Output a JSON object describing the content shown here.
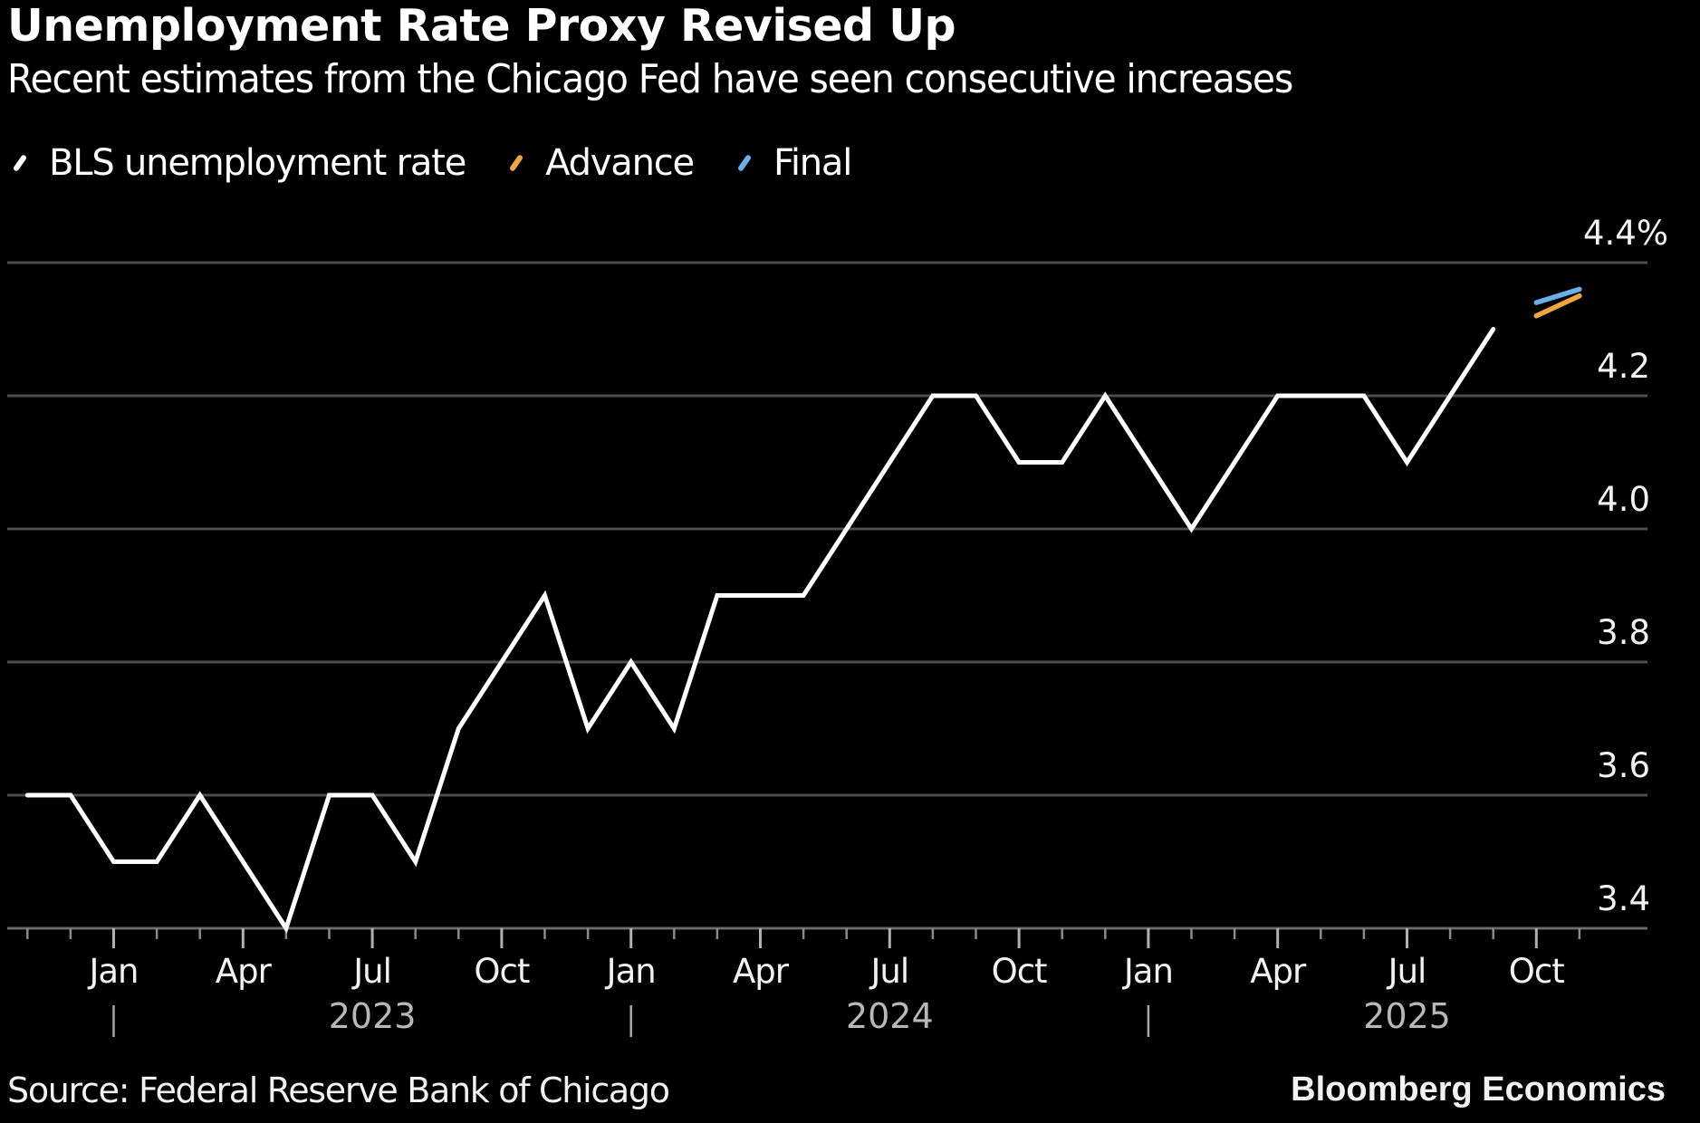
{
  "chart_data": {
    "type": "line",
    "title": "Unemployment Rate Proxy Revised Up",
    "subtitle": "Recent estimates from the Chicago Fed have seen consecutive increases",
    "xlabel": "",
    "ylabel": "",
    "ylim": [
      3.4,
      4.4
    ],
    "y_ticks": [
      3.4,
      3.6,
      3.8,
      4.0,
      4.2,
      4.4
    ],
    "y_tick_labels": [
      "3.4",
      "3.6",
      "3.8",
      "4.0",
      "4.2",
      "4.4%"
    ],
    "y_axis_side": "right",
    "grid": true,
    "legend_position": "top-left",
    "x_range": [
      "2022-11",
      "2025-12"
    ],
    "x_month_ticks": [
      {
        "month": "2023-01",
        "label": "Jan"
      },
      {
        "month": "2023-04",
        "label": "Apr"
      },
      {
        "month": "2023-07",
        "label": "Jul"
      },
      {
        "month": "2023-10",
        "label": "Oct"
      },
      {
        "month": "2024-01",
        "label": "Jan"
      },
      {
        "month": "2024-04",
        "label": "Apr"
      },
      {
        "month": "2024-07",
        "label": "Jul"
      },
      {
        "month": "2024-10",
        "label": "Oct"
      },
      {
        "month": "2025-01",
        "label": "Jan"
      },
      {
        "month": "2025-04",
        "label": "Apr"
      },
      {
        "month": "2025-07",
        "label": "Jul"
      },
      {
        "month": "2025-10",
        "label": "Oct"
      }
    ],
    "x_year_labels": [
      {
        "label": "2023",
        "center_month": "2023-07"
      },
      {
        "label": "2024",
        "center_month": "2024-07"
      },
      {
        "label": "2025",
        "center_month": "2025-07"
      }
    ],
    "x_year_separators": [
      "2023-01",
      "2024-01",
      "2025-01"
    ],
    "series": [
      {
        "name": "BLS unemployment rate",
        "color": "#ffffff",
        "points": [
          {
            "x": "2022-10",
            "y": 3.6
          },
          {
            "x": "2022-11",
            "y": 3.6
          },
          {
            "x": "2022-12",
            "y": 3.5
          },
          {
            "x": "2023-01",
            "y": 3.5
          },
          {
            "x": "2023-02",
            "y": 3.6
          },
          {
            "x": "2023-03",
            "y": 3.5
          },
          {
            "x": "2023-04",
            "y": 3.4
          },
          {
            "x": "2023-05",
            "y": 3.6
          },
          {
            "x": "2023-06",
            "y": 3.6
          },
          {
            "x": "2023-07",
            "y": 3.5
          },
          {
            "x": "2023-08",
            "y": 3.7
          },
          {
            "x": "2023-09",
            "y": 3.8
          },
          {
            "x": "2023-10",
            "y": 3.9
          },
          {
            "x": "2023-11",
            "y": 3.7
          },
          {
            "x": "2023-12",
            "y": 3.8
          },
          {
            "x": "2024-01",
            "y": 3.7
          },
          {
            "x": "2024-02",
            "y": 3.9
          },
          {
            "x": "2024-03",
            "y": 3.9
          },
          {
            "x": "2024-04",
            "y": 3.9
          },
          {
            "x": "2024-05",
            "y": 4.0
          },
          {
            "x": "2024-06",
            "y": 4.1
          },
          {
            "x": "2024-07",
            "y": 4.2
          },
          {
            "x": "2024-08",
            "y": 4.2
          },
          {
            "x": "2024-09",
            "y": 4.1
          },
          {
            "x": "2024-10",
            "y": 4.1
          },
          {
            "x": "2024-11",
            "y": 4.2
          },
          {
            "x": "2024-12",
            "y": 4.1
          },
          {
            "x": "2025-01",
            "y": 4.0
          },
          {
            "x": "2025-02",
            "y": 4.1
          },
          {
            "x": "2025-03",
            "y": 4.2
          },
          {
            "x": "2025-04",
            "y": 4.2
          },
          {
            "x": "2025-05",
            "y": 4.2
          },
          {
            "x": "2025-06",
            "y": 4.1
          },
          {
            "x": "2025-07",
            "y": 4.2
          },
          {
            "x": "2025-08",
            "y": 4.3
          }
        ]
      },
      {
        "name": "Advance",
        "color": "#f0a640",
        "points": [
          {
            "x": "2025-09",
            "y": 4.32
          },
          {
            "x": "2025-10",
            "y": 4.35
          }
        ]
      },
      {
        "name": "Final",
        "color": "#6aafe8",
        "points": [
          {
            "x": "2025-09",
            "y": 4.34
          },
          {
            "x": "2025-10",
            "y": 4.36
          }
        ]
      }
    ],
    "source": "Source: Federal Reserve Bank of Chicago",
    "brand": "Bloomberg Economics"
  }
}
